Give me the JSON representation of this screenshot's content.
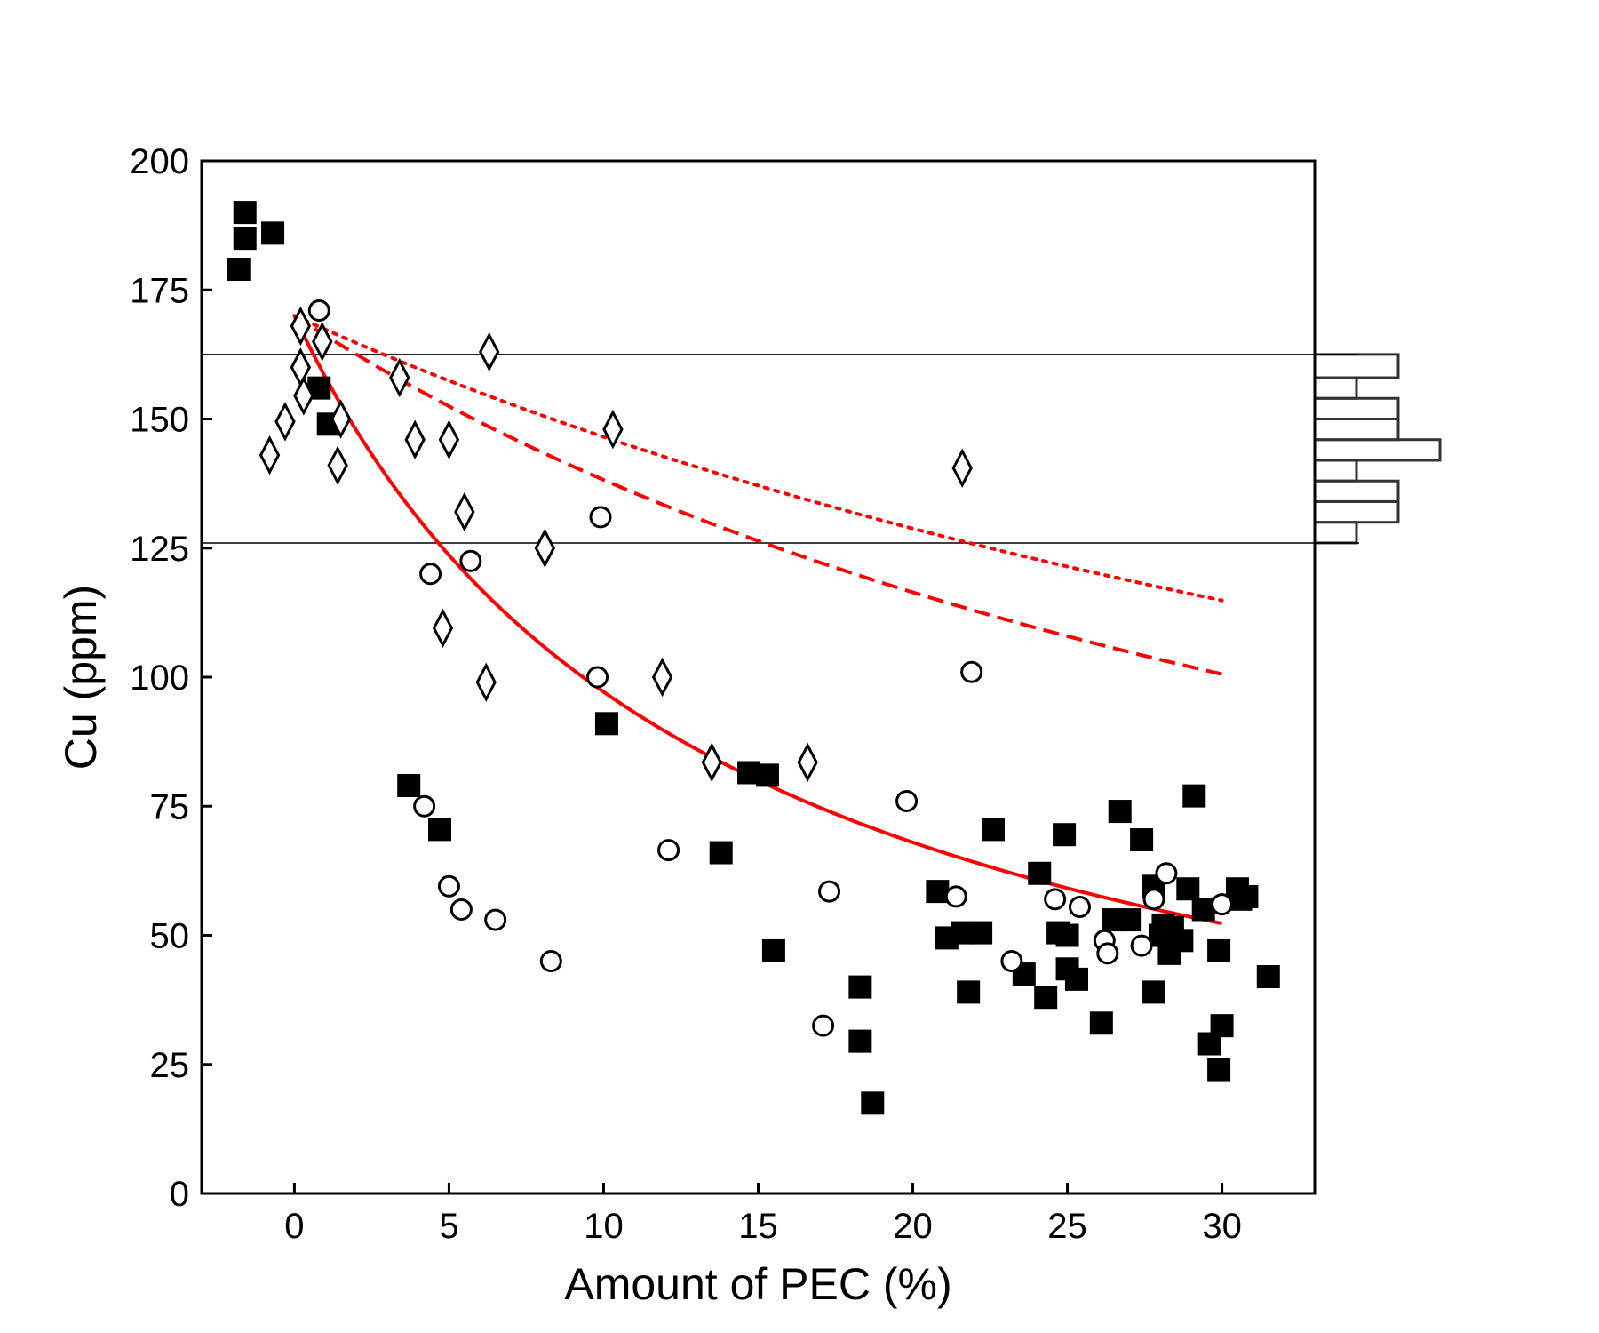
{
  "chart_data": {
    "type": "scatter",
    "title": "",
    "xlabel": "Amount of PEC (%)",
    "ylabel": "Cu (ppm)",
    "xlim": [
      -3,
      33
    ],
    "ylim": [
      0,
      200
    ],
    "x_ticks": [
      0,
      5,
      10,
      15,
      20,
      25,
      30
    ],
    "y_ticks": [
      0,
      25,
      50,
      75,
      100,
      125,
      150,
      175,
      200
    ],
    "x_tick_labels": [
      "0",
      "5",
      "10",
      "15",
      "20",
      "25",
      "30"
    ],
    "y_tick_labels": [
      "0",
      "25",
      "50",
      "75",
      "100",
      "125",
      "150",
      "175",
      "200"
    ],
    "grid": false,
    "legend": "none",
    "colors": {
      "curves": "#ff0000",
      "markers": "#000000",
      "histogram": "#333333"
    },
    "reference_lines": {
      "y": [
        162.5,
        126
      ]
    },
    "series": [
      {
        "marker": "filled-square",
        "points": [
          [
            -1.8,
            179
          ],
          [
            -1.6,
            190
          ],
          [
            -1.6,
            185
          ],
          [
            -0.7,
            186
          ],
          [
            0.8,
            156
          ],
          [
            1.1,
            149
          ],
          [
            3.7,
            79
          ],
          [
            4.7,
            70.5
          ],
          [
            10.1,
            91
          ],
          [
            13.8,
            66
          ],
          [
            14.7,
            81.5
          ],
          [
            15.3,
            81
          ],
          [
            15.5,
            47
          ],
          [
            18.3,
            40
          ],
          [
            18.3,
            29.5
          ],
          [
            18.7,
            17.5
          ],
          [
            20.8,
            58.5
          ],
          [
            21.1,
            49.5
          ],
          [
            21.6,
            50.5
          ],
          [
            21.8,
            39
          ],
          [
            22.2,
            50.5
          ],
          [
            22.6,
            70.5
          ],
          [
            23.6,
            42.5
          ],
          [
            24.1,
            62
          ],
          [
            24.3,
            38
          ],
          [
            24.7,
            50.5
          ],
          [
            24.9,
            69.5
          ],
          [
            25.0,
            43.5
          ],
          [
            25.0,
            50
          ],
          [
            25.3,
            41.5
          ],
          [
            26.1,
            33
          ],
          [
            26.5,
            53
          ],
          [
            26.7,
            74
          ],
          [
            27.0,
            53
          ],
          [
            27.4,
            68.5
          ],
          [
            27.8,
            39
          ],
          [
            27.8,
            59.5
          ],
          [
            28.0,
            50
          ],
          [
            28.1,
            52
          ],
          [
            28.3,
            46.5
          ],
          [
            28.4,
            51.5
          ],
          [
            28.7,
            49
          ],
          [
            28.9,
            59
          ],
          [
            29.1,
            77
          ],
          [
            29.4,
            55
          ],
          [
            29.6,
            29
          ],
          [
            29.9,
            47
          ],
          [
            29.9,
            24
          ],
          [
            30.0,
            32.5
          ],
          [
            30.5,
            59
          ],
          [
            30.6,
            57
          ],
          [
            30.8,
            57.5
          ],
          [
            31.5,
            42
          ]
        ]
      },
      {
        "marker": "open-circle",
        "points": [
          [
            0.8,
            171
          ],
          [
            4.2,
            75
          ],
          [
            4.4,
            120
          ],
          [
            5.0,
            59.5
          ],
          [
            5.4,
            55
          ],
          [
            5.7,
            122.5
          ],
          [
            6.5,
            53
          ],
          [
            8.3,
            45
          ],
          [
            9.8,
            100
          ],
          [
            9.9,
            131
          ],
          [
            12.1,
            66.5
          ],
          [
            17.1,
            32.5
          ],
          [
            17.3,
            58.5
          ],
          [
            19.8,
            76
          ],
          [
            21.4,
            57.5
          ],
          [
            21.9,
            101
          ],
          [
            23.2,
            45
          ],
          [
            24.6,
            57
          ],
          [
            25.4,
            55.5
          ],
          [
            26.2,
            49
          ],
          [
            26.3,
            46.5
          ],
          [
            27.4,
            48
          ],
          [
            27.8,
            57
          ],
          [
            28.2,
            62
          ],
          [
            30.0,
            56
          ]
        ]
      },
      {
        "marker": "open-diamond",
        "points": [
          [
            -0.8,
            143
          ],
          [
            -0.3,
            149.5
          ],
          [
            0.2,
            168
          ],
          [
            0.2,
            160
          ],
          [
            0.3,
            154.5
          ],
          [
            0.9,
            165
          ],
          [
            1.4,
            141
          ],
          [
            1.5,
            150
          ],
          [
            3.4,
            158
          ],
          [
            3.9,
            146
          ],
          [
            4.8,
            109.5
          ],
          [
            5.0,
            146
          ],
          [
            5.5,
            132
          ],
          [
            6.2,
            99
          ],
          [
            6.3,
            163
          ],
          [
            8.1,
            125
          ],
          [
            10.3,
            148
          ],
          [
            11.9,
            100
          ],
          [
            13.5,
            83.5
          ],
          [
            16.6,
            83.5
          ],
          [
            21.6,
            140.5
          ]
        ]
      }
    ],
    "curves": [
      {
        "style": "solid",
        "D": 8.5,
        "C0": 170,
        "x_range": [
          0,
          30
        ]
      },
      {
        "style": "dashed",
        "D": 3.3,
        "C0": 170,
        "x_range": [
          0,
          30
        ]
      },
      {
        "style": "dotted",
        "D": 2.6,
        "C0": 170,
        "x_range": [
          0,
          30
        ]
      }
    ],
    "histogram": {
      "orientation": "horizontal",
      "bin_edges": [
        126,
        130,
        134,
        138,
        142,
        146,
        150,
        154,
        158,
        162.5
      ],
      "counts": [
        1,
        2,
        2,
        1,
        3,
        2,
        2,
        1,
        2
      ]
    }
  }
}
